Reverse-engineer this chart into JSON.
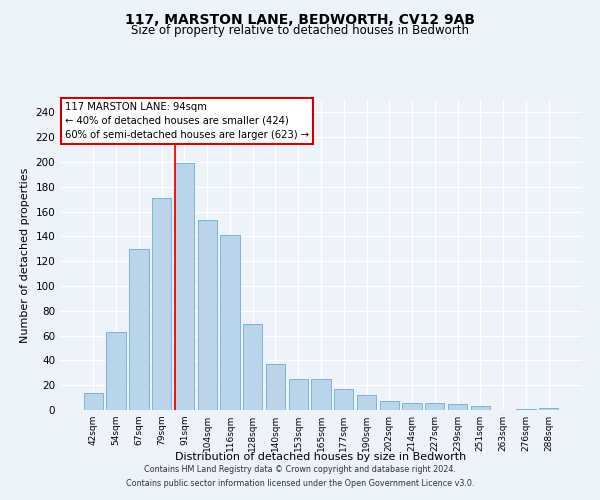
{
  "title": "117, MARSTON LANE, BEDWORTH, CV12 9AB",
  "subtitle": "Size of property relative to detached houses in Bedworth",
  "xlabel": "Distribution of detached houses by size in Bedworth",
  "ylabel": "Number of detached properties",
  "bins": [
    "42sqm",
    "54sqm",
    "67sqm",
    "79sqm",
    "91sqm",
    "104sqm",
    "116sqm",
    "128sqm",
    "140sqm",
    "153sqm",
    "165sqm",
    "177sqm",
    "190sqm",
    "202sqm",
    "214sqm",
    "227sqm",
    "239sqm",
    "251sqm",
    "263sqm",
    "276sqm",
    "288sqm"
  ],
  "values": [
    14,
    63,
    130,
    171,
    199,
    153,
    141,
    69,
    37,
    25,
    25,
    17,
    12,
    7,
    6,
    6,
    5,
    3,
    0,
    1,
    2
  ],
  "bar_color": "#bad4ea",
  "bar_edge_color": "#6aaed6",
  "highlight_bin_index": 4,
  "highlight_color": "#ff0000",
  "annotation_text": "117 MARSTON LANE: 94sqm\n← 40% of detached houses are smaller (424)\n60% of semi-detached houses are larger (623) →",
  "annotation_box_color": "#ffffff",
  "annotation_box_edge_color": "#cc0000",
  "footer_line1": "Contains HM Land Registry data © Crown copyright and database right 2024.",
  "footer_line2": "Contains public sector information licensed under the Open Government Licence v3.0.",
  "background_color": "#eef2f9",
  "ylim": [
    0,
    250
  ],
  "yticks": [
    0,
    20,
    40,
    60,
    80,
    100,
    120,
    140,
    160,
    180,
    200,
    220,
    240
  ]
}
